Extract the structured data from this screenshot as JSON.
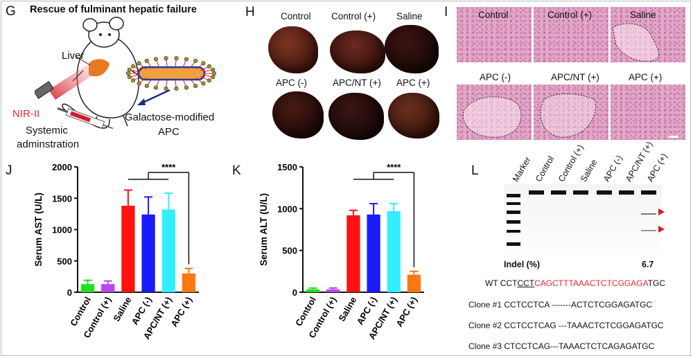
{
  "panels": {
    "G": {
      "letter": "G",
      "title": "Rescue of fulminant hepatic failure",
      "liver_label": "Liver",
      "nir_label": "NIR-II",
      "systemic_line1": "Systemic",
      "systemic_line2": "adminstration",
      "apc_line1": "Galactose-modified",
      "apc_line2": "APC",
      "colors": {
        "nir": "#e8293a",
        "arrow": "#1c2a8a",
        "rod": "#f0a040"
      }
    },
    "H": {
      "letter": "H",
      "labels": [
        "Control",
        "Control (+)",
        "Saline",
        "APC (-)",
        "APC/NT (+)",
        "APC (+)"
      ]
    },
    "I": {
      "letter": "I",
      "labels": [
        "Control",
        "Control (+)",
        "Saline",
        "APC (-)",
        "APC/NT (+)",
        "APC (+)"
      ]
    },
    "J": {
      "letter": "J",
      "significance": "****"
    },
    "K": {
      "letter": "K",
      "significance": "****"
    },
    "L": {
      "letter": "L",
      "lane_labels": [
        "Marker",
        "Control",
        "Control (+)",
        "Saline",
        "APC (-)",
        "APC/NT (+)",
        "APC (+)"
      ],
      "indel_label": "Indel (%)",
      "indel_value": "6.7",
      "wt_prefix": "WT ",
      "wt_normal1": "CCT",
      "wt_underlined": "CCT",
      "wt_red": "CAGCTTTAAACTCTCGGAGA",
      "wt_normal2": "TGC",
      "clones": [
        "Clone #1 CCTCCTCA -------ACTCTCGGAGATGC",
        "Clone #2 CCTCCTCAG ---TAAACTCTCGGAGATGC",
        "Clone #3 CTCCTCAG---TAAACTCTCAGAGATGC"
      ]
    }
  },
  "chart_data": [
    {
      "type": "bar",
      "ylabel": "Serum AST (U/L)",
      "categories": [
        "Control",
        "Control (+)",
        "Saline",
        "APC (-)",
        "APC/NT (+)",
        "APC (+)"
      ],
      "values": [
        130,
        130,
        1380,
        1240,
        1320,
        300
      ],
      "errors": [
        60,
        50,
        250,
        280,
        260,
        80
      ],
      "colors": [
        "#22dd22",
        "#bb44ee",
        "#ff1111",
        "#1a1aff",
        "#33eeff",
        "#ff7711"
      ],
      "ylim": [
        0,
        2000
      ],
      "yticks": [
        0,
        500,
        1000,
        1500,
        2000
      ],
      "significance": "****"
    },
    {
      "type": "bar",
      "ylabel": "Serum ALT (U/L)",
      "categories": [
        "Control",
        "Control (+)",
        "Saline",
        "APC (-)",
        "APC/NT (+)",
        "APC (+)"
      ],
      "values": [
        35,
        35,
        920,
        930,
        970,
        210
      ],
      "errors": [
        15,
        15,
        60,
        130,
        90,
        40
      ],
      "colors": [
        "#22dd22",
        "#bb44ee",
        "#ff1111",
        "#1a1aff",
        "#33eeff",
        "#ff7711"
      ],
      "ylim": [
        0,
        1500
      ],
      "yticks": [
        0,
        500,
        1000,
        1500
      ],
      "significance": "****"
    }
  ]
}
